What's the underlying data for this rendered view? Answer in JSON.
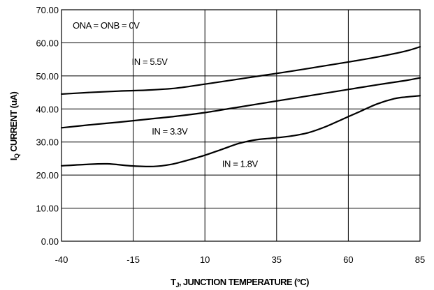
{
  "chart_data": {
    "type": "line",
    "xlabel_main": "T",
    "xlabel_sub": "J",
    "xlabel_rest": ", JUNCTION TEMPERATURE (°C)",
    "ylabel_main": "I",
    "ylabel_sub": "Q",
    "ylabel_rest": " CURRENT (uA)",
    "xlim": [
      -40,
      85
    ],
    "ylim": [
      0,
      70
    ],
    "x_ticks": [
      -40,
      -15,
      10,
      35,
      60,
      85
    ],
    "x_tick_labels": [
      "-40",
      "-15",
      "10",
      "35",
      "60",
      "85"
    ],
    "y_ticks": [
      0,
      10,
      20,
      30,
      40,
      50,
      60,
      70
    ],
    "y_tick_labels": [
      "0.00",
      "10.00",
      "20.00",
      "30.00",
      "40.00",
      "50.00",
      "60.00",
      "70.00"
    ],
    "grid": true,
    "condition": "ONA = ONB = 0V",
    "series": [
      {
        "name": "IN = 5.5V",
        "x": [
          -40,
          -30,
          -20,
          -10,
          0,
          10,
          20,
          30,
          40,
          50,
          60,
          70,
          80,
          85
        ],
        "y": [
          44.5,
          45.0,
          45.4,
          45.7,
          46.3,
          47.5,
          48.8,
          50.1,
          51.4,
          52.8,
          54.2,
          55.7,
          57.5,
          58.8
        ]
      },
      {
        "name": "IN = 3.3V",
        "x": [
          -40,
          -30,
          -20,
          -10,
          0,
          10,
          20,
          30,
          40,
          50,
          60,
          70,
          80,
          85
        ],
        "y": [
          34.3,
          35.2,
          36.0,
          36.9,
          37.8,
          38.9,
          40.3,
          41.7,
          43.1,
          44.5,
          45.9,
          47.3,
          48.6,
          49.4
        ]
      },
      {
        "name": "IN = 1.8V",
        "x": [
          -40,
          -32,
          -24,
          -16,
          -8,
          -2,
          4,
          10,
          16,
          22,
          28,
          34,
          40,
          46,
          52,
          58,
          64,
          70,
          76,
          80,
          85
        ],
        "y": [
          22.8,
          23.2,
          23.4,
          22.8,
          22.6,
          23.2,
          24.5,
          26.0,
          27.8,
          29.6,
          30.7,
          31.2,
          31.8,
          32.8,
          34.6,
          36.9,
          39.2,
          41.5,
          43.1,
          43.6,
          44.0
        ]
      }
    ],
    "annotations": [
      {
        "text": "IN = 5.5V",
        "x": -15.5,
        "y": 53.3
      },
      {
        "text": "IN = 3.3V",
        "x": -8.5,
        "y": 32.3
      },
      {
        "text": "IN = 1.8V",
        "x": 16,
        "y": 22.5
      }
    ]
  }
}
